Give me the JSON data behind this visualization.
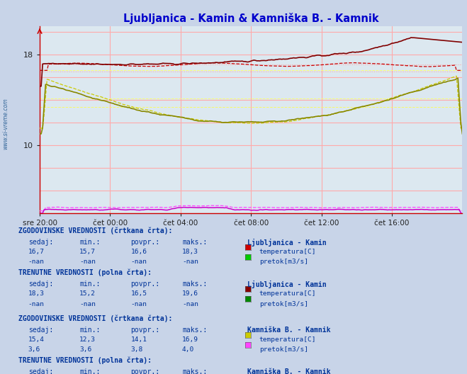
{
  "title": "Ljubljanica - Kamin & Kamniška B. - Kamnik",
  "title_color": "#0000cc",
  "bg_color": "#c8d4e8",
  "plot_bg_color": "#dce8f0",
  "x_ticks_labels": [
    "sre 20:00",
    "čet 00:00",
    "čet 04:00",
    "čet 08:00",
    "čet 12:00",
    "čet 16:00"
  ],
  "x_ticks_pos": [
    0,
    48,
    96,
    144,
    192,
    240
  ],
  "ylim": [
    4.0,
    20.5
  ],
  "xlim": [
    0,
    288
  ],
  "n_points": 289,
  "color_lj_temp_hist": "#cc0000",
  "color_lj_temp_curr": "#800000",
  "color_kam_temp_hist": "#cccc00",
  "color_kam_temp_curr": "#888800",
  "color_lj_pretok_hist": "#00cc00",
  "color_lj_pretok_curr": "#008800",
  "color_kam_pretok_hist": "#ff44ff",
  "color_kam_pretok_curr": "#cc00cc",
  "text_color": "#003399",
  "axis_color": "#cc0000",
  "grid_v_color": "#ffaaaa",
  "grid_h_color": "#ffaaaa",
  "side_label": "www.si-vreme.com"
}
